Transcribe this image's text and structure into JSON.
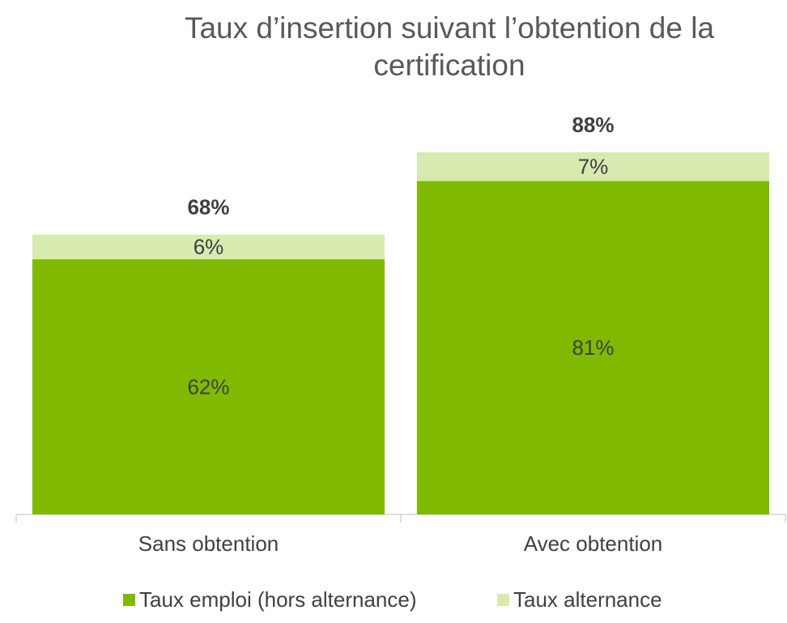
{
  "chart_data": {
    "type": "stacked_bar",
    "title": "Taux d’insertion suivant l’obtention de la certification",
    "categories": [
      "Sans obtention",
      "Avec obtention"
    ],
    "series": [
      {
        "name": "Taux emploi (hors alternance)",
        "color": "#7fba00",
        "values": [
          62,
          81
        ],
        "value_labels": [
          "62%",
          "81%"
        ]
      },
      {
        "name": "Taux alternance",
        "color": "#d7eab0",
        "values": [
          6,
          7
        ],
        "value_labels": [
          "6%",
          "7%"
        ]
      }
    ],
    "totals": [
      68,
      88
    ],
    "total_labels": [
      "68%",
      "88%"
    ],
    "ylim": [
      0,
      100
    ],
    "legend": "bottom"
  }
}
